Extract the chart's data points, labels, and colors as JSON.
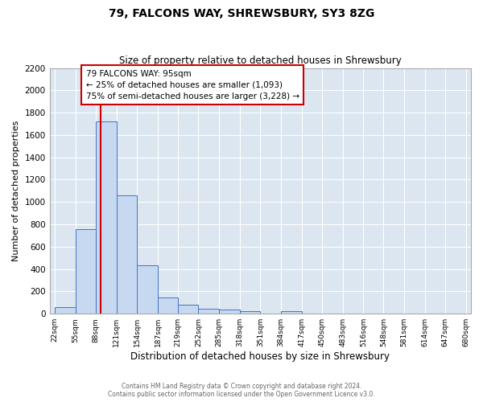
{
  "title": "79, FALCONS WAY, SHREWSBURY, SY3 8ZG",
  "subtitle": "Size of property relative to detached houses in Shrewsbury",
  "xlabel": "Distribution of detached houses by size in Shrewsbury",
  "ylabel": "Number of detached properties",
  "bar_color": "#c6d9f1",
  "bar_edge_color": "#4472c4",
  "plot_bg_color": "#dce6f1",
  "grid_color": "#ffffff",
  "red_line_x": 95,
  "annotation_title": "79 FALCONS WAY: 95sqm",
  "annotation_line1": "← 25% of detached houses are smaller (1,093)",
  "annotation_line2": "75% of semi-detached houses are larger (3,228) →",
  "annotation_box_color": "#ffffff",
  "annotation_box_edge": "#cc0000",
  "bin_edges": [
    22,
    55,
    88,
    121,
    154,
    187,
    219,
    252,
    285,
    318,
    351,
    384,
    417,
    450,
    483,
    516,
    548,
    581,
    614,
    647,
    680
  ],
  "bin_heights": [
    60,
    760,
    1720,
    1060,
    430,
    145,
    80,
    45,
    35,
    20,
    5,
    20,
    5,
    0,
    0,
    0,
    0,
    0,
    0,
    0
  ],
  "ylim": [
    0,
    2200
  ],
  "yticks": [
    0,
    200,
    400,
    600,
    800,
    1000,
    1200,
    1400,
    1600,
    1800,
    2000,
    2200
  ],
  "footer_line1": "Contains HM Land Registry data © Crown copyright and database right 2024.",
  "footer_line2": "Contains public sector information licensed under the Open Government Licence v3.0."
}
